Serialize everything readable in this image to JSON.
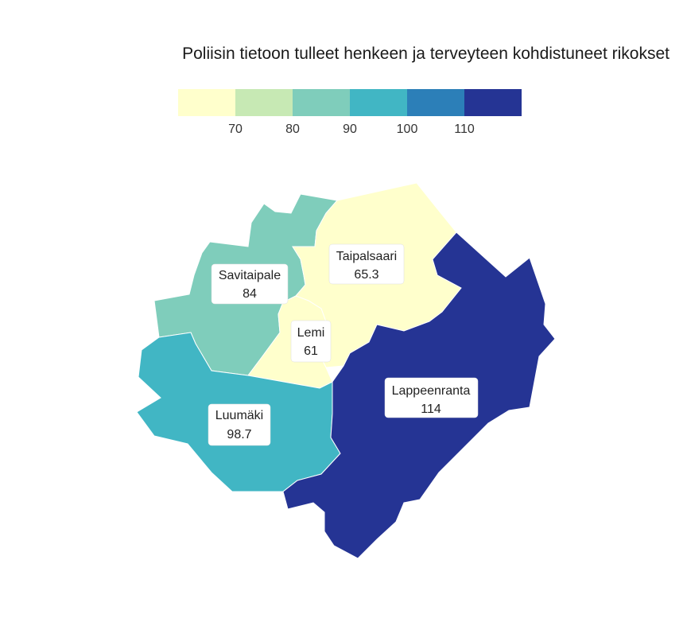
{
  "title": "Poliisin tietoon tulleet henkeen ja terveyteen kohdistuneet rikokset",
  "legend": {
    "colors": [
      "#ffffcc",
      "#c7e9b4",
      "#7fcdbb",
      "#41b6c4",
      "#2c7fb8",
      "#253494"
    ],
    "ticks": [
      "70",
      "80",
      "90",
      "100",
      "110"
    ]
  },
  "regions": [
    {
      "name": "Savitaipale",
      "value": "84",
      "color": "#7fcdbb"
    },
    {
      "name": "Taipalsaari",
      "value": "65.3",
      "color": "#ffffcc"
    },
    {
      "name": "Lemi",
      "value": "61",
      "color": "#ffffcc"
    },
    {
      "name": "Luumäki",
      "value": "98.7",
      "color": "#41b6c4"
    },
    {
      "name": "Lappeenranta",
      "value": "114",
      "color": "#253494"
    }
  ]
}
